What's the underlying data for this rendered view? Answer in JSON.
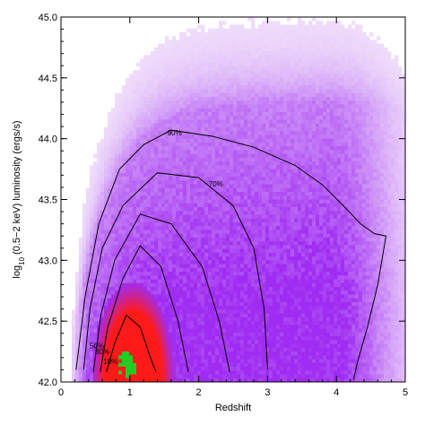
{
  "chart_data": {
    "type": "heatmap",
    "xlabel": "Redshift",
    "ylabel": "log10 (0.5−2 keV) luminosity (ergs/s)",
    "ylabel_parts": {
      "prefix": "log",
      "subscript": "10",
      "suffix": " (0.5−2 keV) luminosity (ergs/s)"
    },
    "xlim": [
      0,
      5
    ],
    "ylim": [
      42.0,
      45.0
    ],
    "x_ticks": [
      "0",
      "1",
      "2",
      "3",
      "4",
      "5"
    ],
    "x_tick_values": [
      0,
      1,
      2,
      3,
      4,
      5
    ],
    "y_ticks": [
      "42.0",
      "42.5",
      "43.0",
      "43.5",
      "44.0",
      "44.5",
      "45.0"
    ],
    "y_tick_values": [
      42.0,
      42.5,
      43.0,
      43.5,
      44.0,
      44.5,
      45.0
    ],
    "grid": false,
    "colors": {
      "low": "#f3e6fb",
      "mid": "#9f2cf2",
      "high": "#ff1a1a",
      "peak": "#22cc22"
    },
    "density_peak": {
      "x": 0.95,
      "y": 42.15
    },
    "contours": [
      {
        "label": "90%",
        "label_at": {
          "x": 1.65,
          "y": 44.05
        },
        "points": [
          [
            0.22,
            42.1
          ],
          [
            0.35,
            42.7
          ],
          [
            0.55,
            43.3
          ],
          [
            0.85,
            43.75
          ],
          [
            1.2,
            43.95
          ],
          [
            1.6,
            44.07
          ],
          [
            2.2,
            44.02
          ],
          [
            2.8,
            43.93
          ],
          [
            3.4,
            43.78
          ],
          [
            3.8,
            43.62
          ],
          [
            4.1,
            43.45
          ],
          [
            4.35,
            43.3
          ],
          [
            4.55,
            43.22
          ],
          [
            4.72,
            43.2
          ],
          [
            4.6,
            42.8
          ],
          [
            4.45,
            42.45
          ],
          [
            4.3,
            42.15
          ],
          [
            4.25,
            42.02
          ]
        ]
      },
      {
        "label": "70%",
        "label_at": {
          "x": 2.25,
          "y": 43.63
        },
        "points": [
          [
            0.33,
            42.1
          ],
          [
            0.42,
            42.6
          ],
          [
            0.6,
            43.1
          ],
          [
            0.9,
            43.45
          ],
          [
            1.4,
            43.72
          ],
          [
            2.0,
            43.68
          ],
          [
            2.5,
            43.45
          ],
          [
            2.8,
            43.1
          ],
          [
            2.95,
            42.6
          ],
          [
            3.0,
            42.1
          ]
        ]
      },
      {
        "label": "50%",
        "label_at": {
          "x": 0.52,
          "y": 42.3
        },
        "points": [
          [
            0.47,
            42.08
          ],
          [
            0.58,
            42.55
          ],
          [
            0.78,
            43.0
          ],
          [
            1.15,
            43.38
          ],
          [
            1.6,
            43.3
          ],
          [
            2.05,
            42.95
          ],
          [
            2.3,
            42.5
          ],
          [
            2.45,
            42.08
          ]
        ]
      },
      {
        "label": "30%",
        "label_at": {
          "x": 0.6,
          "y": 42.25
        },
        "points": [
          [
            0.57,
            42.08
          ],
          [
            0.68,
            42.45
          ],
          [
            0.9,
            42.85
          ],
          [
            1.15,
            43.12
          ],
          [
            1.45,
            42.95
          ],
          [
            1.7,
            42.5
          ],
          [
            1.85,
            42.08
          ]
        ]
      },
      {
        "label": "10%",
        "label_at": {
          "x": 0.72,
          "y": 42.17
        },
        "points": [
          [
            0.66,
            42.08
          ],
          [
            0.78,
            42.32
          ],
          [
            0.95,
            42.55
          ],
          [
            1.15,
            42.45
          ],
          [
            1.3,
            42.2
          ],
          [
            1.38,
            42.08
          ]
        ]
      }
    ]
  }
}
